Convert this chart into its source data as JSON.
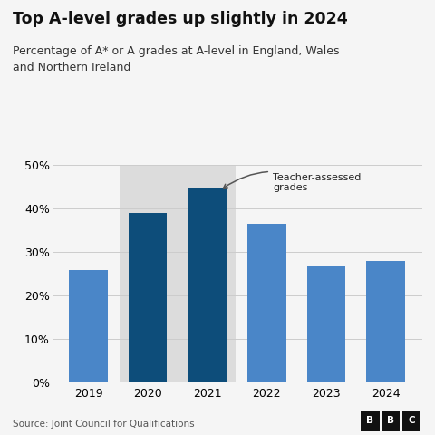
{
  "categories": [
    "2019",
    "2020",
    "2021",
    "2022",
    "2023",
    "2024"
  ],
  "values": [
    26.0,
    39.0,
    44.8,
    36.5,
    26.9,
    28.0
  ],
  "bar_colors": [
    "#4a86c8",
    "#0d4d7a",
    "#0d4d7a",
    "#4a86c8",
    "#4a86c8",
    "#4a86c8"
  ],
  "highlight_bg_color": "#dcdcdc",
  "title": "Top A-level grades up slightly in 2024",
  "subtitle": "Percentage of A* or A grades at A-level in England, Wales\nand Northern Ireland",
  "source": "Source: Joint Council for Qualifications",
  "annotation_text": "Teacher-assessed\ngrades",
  "ylim": [
    0,
    50
  ],
  "yticks": [
    0,
    10,
    20,
    30,
    40,
    50
  ],
  "title_fontsize": 12.5,
  "subtitle_fontsize": 9.0,
  "bg_color": "#f5f5f5",
  "grid_color": "#cccccc",
  "bbc_logo": "BBC",
  "source_fontsize": 7.5,
  "bar_width": 0.65
}
